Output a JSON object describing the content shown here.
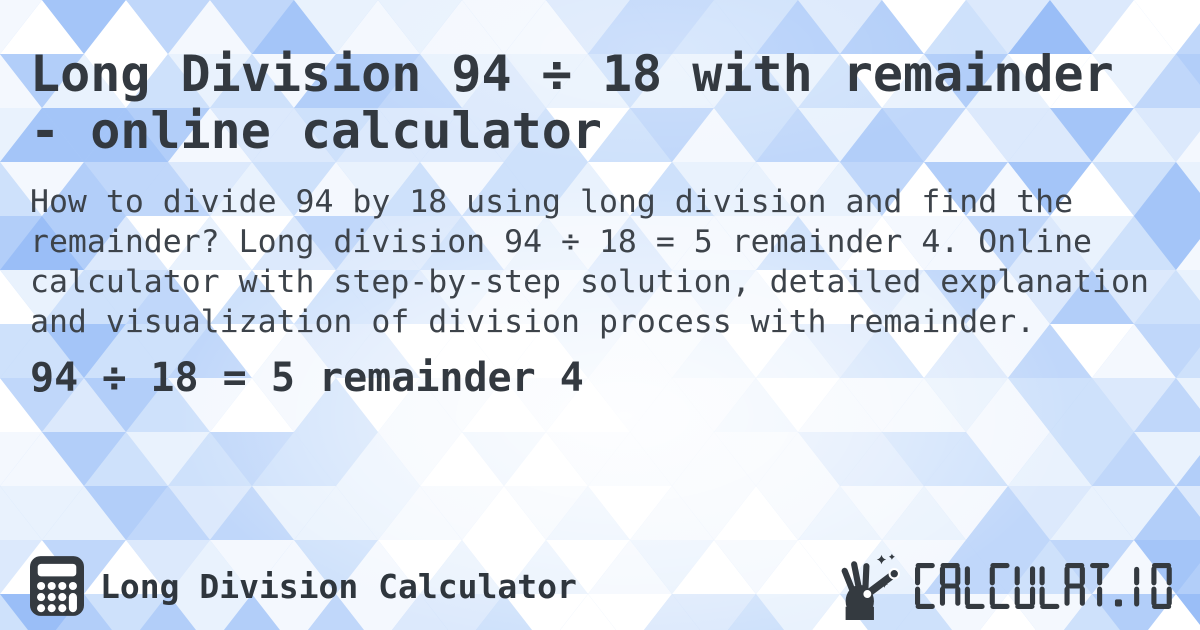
{
  "page": {
    "title": "Long Division 94 ÷ 18 with remainder - online calculator",
    "description": "How to divide 94 by 18 using long division and find the remainder? Long division 94 ÷ 18 = 5 remainder 4. Online calculator with step-by-step solution, detailed explanation and visualization of division process with remainder.",
    "result": "94 ÷ 18 = 5 remainder 4"
  },
  "footer": {
    "app_name": "Long Division Calculator",
    "brand_wordmark": "CALCULAT.IO",
    "icons": [
      {
        "name": "calculator-icon"
      },
      {
        "name": "magic-wand-hand-icon"
      }
    ]
  },
  "colors": {
    "text": "#343a40",
    "background": "#abcbf8",
    "mosaic_light": "#ffffff"
  }
}
